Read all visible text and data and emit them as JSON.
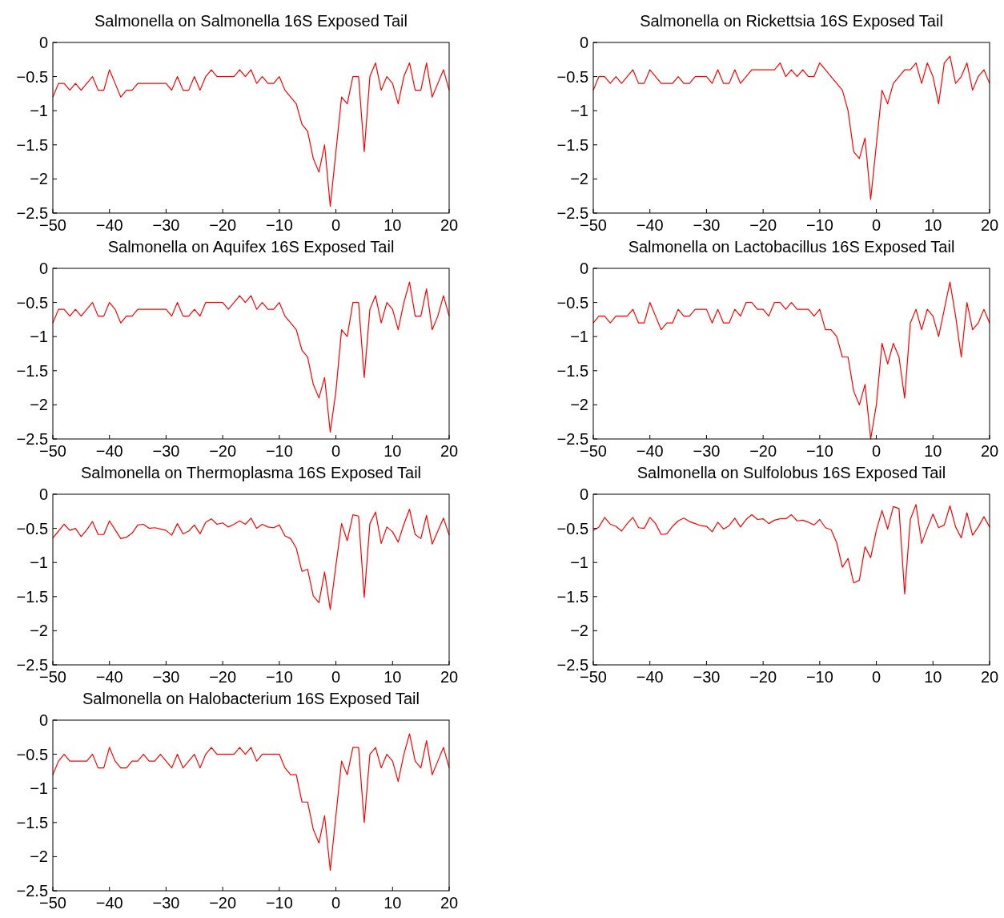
{
  "chart_data": [
    {
      "type": "line",
      "title": "Salmonella on Salmonella 16S Exposed Tail",
      "xlim": [
        -50,
        20
      ],
      "ylim": [
        -2.5,
        0
      ],
      "xticks": [
        -50,
        -40,
        -30,
        -20,
        -10,
        0,
        10,
        20
      ],
      "yticks": [
        -2.5,
        -2,
        -1.5,
        -1,
        -0.5,
        0
      ],
      "x": [
        -50,
        -49,
        -48,
        -47,
        -46,
        -45,
        -44,
        -43,
        -42,
        -41,
        -40,
        -39,
        -38,
        -37,
        -36,
        -35,
        -34,
        -33,
        -32,
        -31,
        -30,
        -29,
        -28,
        -27,
        -26,
        -25,
        -24,
        -23,
        -22,
        -21,
        -20,
        -19,
        -18,
        -17,
        -16,
        -15,
        -14,
        -13,
        -12,
        -11,
        -10,
        -9,
        -8,
        -7,
        -6,
        -5,
        -4,
        -3,
        -2,
        -1,
        0,
        1,
        2,
        3,
        4,
        5,
        6,
        7,
        8,
        9,
        10,
        11,
        12,
        13,
        14,
        15,
        16,
        17,
        18,
        19,
        20
      ],
      "series": [
        {
          "color": "#ff0000",
          "values": [
            -0.8,
            -0.6,
            -0.6,
            -0.7,
            -0.6,
            -0.7,
            -0.6,
            -0.5,
            -0.7,
            -0.7,
            -0.4,
            -0.6,
            -0.8,
            -0.7,
            -0.7,
            -0.6,
            -0.6,
            -0.6,
            -0.6,
            -0.6,
            -0.6,
            -0.7,
            -0.5,
            -0.7,
            -0.7,
            -0.5,
            -0.7,
            -0.5,
            -0.4,
            -0.5,
            -0.5,
            -0.5,
            -0.5,
            -0.4,
            -0.5,
            -0.4,
            -0.6,
            -0.5,
            -0.6,
            -0.6,
            -0.5,
            -0.7,
            -0.8,
            -0.9,
            -1.2,
            -1.3,
            -1.7,
            -1.9,
            -1.5,
            -2.4,
            -1.6,
            -0.8,
            -0.9,
            -0.5,
            -0.5,
            -1.6,
            -0.5,
            -0.3,
            -0.7,
            -0.5,
            -0.6,
            -0.9,
            -0.5,
            -0.3,
            -0.7,
            -0.7,
            -0.3,
            -0.8,
            -0.6,
            -0.4,
            -0.7
          ]
        }
      ]
    },
    {
      "type": "line",
      "title": "Salmonella on Rickettsia 16S Exposed Tail",
      "xlim": [
        -50,
        20
      ],
      "ylim": [
        -2.5,
        0
      ],
      "xticks": [
        -50,
        -40,
        -30,
        -20,
        -10,
        0,
        10,
        20
      ],
      "yticks": [
        -2.5,
        -2,
        -1.5,
        -1,
        -0.5,
        0
      ],
      "x": [
        -50,
        -49,
        -48,
        -47,
        -46,
        -45,
        -44,
        -43,
        -42,
        -41,
        -40,
        -39,
        -38,
        -37,
        -36,
        -35,
        -34,
        -33,
        -32,
        -31,
        -30,
        -29,
        -28,
        -27,
        -26,
        -25,
        -24,
        -23,
        -22,
        -21,
        -20,
        -19,
        -18,
        -17,
        -16,
        -15,
        -14,
        -13,
        -12,
        -11,
        -10,
        -9,
        -8,
        -7,
        -6,
        -5,
        -4,
        -3,
        -2,
        -1,
        0,
        1,
        2,
        3,
        4,
        5,
        6,
        7,
        8,
        9,
        10,
        11,
        12,
        13,
        14,
        15,
        16,
        17,
        18,
        19,
        20
      ],
      "series": [
        {
          "color": "#ff0000",
          "values": [
            -0.7,
            -0.5,
            -0.5,
            -0.6,
            -0.5,
            -0.6,
            -0.5,
            -0.4,
            -0.6,
            -0.6,
            -0.4,
            -0.5,
            -0.6,
            -0.6,
            -0.6,
            -0.5,
            -0.6,
            -0.6,
            -0.5,
            -0.5,
            -0.5,
            -0.6,
            -0.4,
            -0.6,
            -0.6,
            -0.4,
            -0.6,
            -0.5,
            -0.4,
            -0.4,
            -0.4,
            -0.4,
            -0.4,
            -0.3,
            -0.5,
            -0.4,
            -0.5,
            -0.4,
            -0.5,
            -0.5,
            -0.3,
            -0.4,
            -0.5,
            -0.6,
            -0.7,
            -1.0,
            -1.6,
            -1.7,
            -1.4,
            -2.3,
            -1.5,
            -0.7,
            -0.9,
            -0.6,
            -0.5,
            -0.4,
            -0.4,
            -0.3,
            -0.6,
            -0.3,
            -0.5,
            -0.9,
            -0.3,
            -0.2,
            -0.6,
            -0.5,
            -0.3,
            -0.7,
            -0.5,
            -0.4,
            -0.6
          ]
        }
      ]
    },
    {
      "type": "line",
      "title": "Salmonella on Aquifex 16S Exposed Tail",
      "xlim": [
        -50,
        20
      ],
      "ylim": [
        -2.5,
        0
      ],
      "xticks": [
        -50,
        -40,
        -30,
        -20,
        -10,
        0,
        10,
        20
      ],
      "yticks": [
        -2.5,
        -2,
        -1.5,
        -1,
        -0.5,
        0
      ],
      "x": [
        -50,
        -49,
        -48,
        -47,
        -46,
        -45,
        -44,
        -43,
        -42,
        -41,
        -40,
        -39,
        -38,
        -37,
        -36,
        -35,
        -34,
        -33,
        -32,
        -31,
        -30,
        -29,
        -28,
        -27,
        -26,
        -25,
        -24,
        -23,
        -22,
        -21,
        -20,
        -19,
        -18,
        -17,
        -16,
        -15,
        -14,
        -13,
        -12,
        -11,
        -10,
        -9,
        -8,
        -7,
        -6,
        -5,
        -4,
        -3,
        -2,
        -1,
        0,
        1,
        2,
        3,
        4,
        5,
        6,
        7,
        8,
        9,
        10,
        11,
        12,
        13,
        14,
        15,
        16,
        17,
        18,
        19,
        20
      ],
      "series": [
        {
          "color": "#ff0000",
          "values": [
            -0.8,
            -0.6,
            -0.6,
            -0.7,
            -0.6,
            -0.7,
            -0.6,
            -0.5,
            -0.7,
            -0.7,
            -0.5,
            -0.6,
            -0.8,
            -0.7,
            -0.7,
            -0.6,
            -0.6,
            -0.6,
            -0.6,
            -0.6,
            -0.6,
            -0.7,
            -0.5,
            -0.7,
            -0.7,
            -0.6,
            -0.7,
            -0.5,
            -0.5,
            -0.5,
            -0.5,
            -0.6,
            -0.5,
            -0.4,
            -0.5,
            -0.4,
            -0.6,
            -0.5,
            -0.6,
            -0.6,
            -0.5,
            -0.7,
            -0.8,
            -0.9,
            -1.2,
            -1.3,
            -1.7,
            -1.9,
            -1.6,
            -2.4,
            -1.8,
            -0.9,
            -1.0,
            -0.5,
            -0.5,
            -1.6,
            -0.6,
            -0.4,
            -0.8,
            -0.5,
            -0.6,
            -0.9,
            -0.5,
            -0.2,
            -0.7,
            -0.7,
            -0.3,
            -0.9,
            -0.7,
            -0.4,
            -0.7
          ]
        }
      ]
    },
    {
      "type": "line",
      "title": "Salmonella on Lactobacillus 16S Exposed Tail",
      "xlim": [
        -50,
        20
      ],
      "ylim": [
        -2.5,
        0
      ],
      "xticks": [
        -50,
        -40,
        -30,
        -20,
        -10,
        0,
        10,
        20
      ],
      "yticks": [
        -2.5,
        -2,
        -1.5,
        -1,
        -0.5,
        0
      ],
      "x": [
        -50,
        -49,
        -48,
        -47,
        -46,
        -45,
        -44,
        -43,
        -42,
        -41,
        -40,
        -39,
        -38,
        -37,
        -36,
        -35,
        -34,
        -33,
        -32,
        -31,
        -30,
        -29,
        -28,
        -27,
        -26,
        -25,
        -24,
        -23,
        -22,
        -21,
        -20,
        -19,
        -18,
        -17,
        -16,
        -15,
        -14,
        -13,
        -12,
        -11,
        -10,
        -9,
        -8,
        -7,
        -6,
        -5,
        -4,
        -3,
        -2,
        -1,
        0,
        1,
        2,
        3,
        4,
        5,
        6,
        7,
        8,
        9,
        10,
        11,
        12,
        13,
        14,
        15,
        16,
        17,
        18,
        19,
        20
      ],
      "series": [
        {
          "color": "#ff0000",
          "values": [
            -0.8,
            -0.7,
            -0.7,
            -0.8,
            -0.7,
            -0.7,
            -0.7,
            -0.6,
            -0.8,
            -0.8,
            -0.5,
            -0.7,
            -0.9,
            -0.8,
            -0.8,
            -0.6,
            -0.7,
            -0.7,
            -0.6,
            -0.6,
            -0.6,
            -0.8,
            -0.6,
            -0.8,
            -0.8,
            -0.6,
            -0.7,
            -0.5,
            -0.5,
            -0.6,
            -0.6,
            -0.7,
            -0.5,
            -0.5,
            -0.6,
            -0.5,
            -0.6,
            -0.6,
            -0.6,
            -0.7,
            -0.6,
            -0.9,
            -0.9,
            -1.0,
            -1.3,
            -1.3,
            -1.8,
            -2.0,
            -1.7,
            -2.5,
            -2.0,
            -1.1,
            -1.4,
            -1.1,
            -1.3,
            -1.9,
            -0.8,
            -0.6,
            -0.9,
            -0.6,
            -0.7,
            -1.0,
            -0.6,
            -0.2,
            -0.7,
            -1.3,
            -0.5,
            -0.9,
            -0.8,
            -0.6,
            -0.8
          ]
        }
      ]
    },
    {
      "type": "line",
      "title": "Salmonella on Thermoplasma 16S Exposed Tail",
      "xlim": [
        -50,
        20
      ],
      "ylim": [
        -2.5,
        0
      ],
      "xticks": [
        -50,
        -40,
        -30,
        -20,
        -10,
        0,
        10,
        20
      ],
      "yticks": [
        -2.5,
        -2,
        -1.5,
        -1,
        -0.5,
        0
      ],
      "x": [
        -50,
        -49,
        -48,
        -47,
        -46,
        -45,
        -44,
        -43,
        -42,
        -41,
        -40,
        -39,
        -38,
        -37,
        -36,
        -35,
        -34,
        -33,
        -32,
        -31,
        -30,
        -29,
        -28,
        -27,
        -26,
        -25,
        -24,
        -23,
        -22,
        -21,
        -20,
        -19,
        -18,
        -17,
        -16,
        -15,
        -14,
        -13,
        -12,
        -11,
        -10,
        -9,
        -8,
        -7,
        -6,
        -5,
        -4,
        -3,
        -2,
        -1,
        0,
        1,
        2,
        3,
        4,
        5,
        6,
        7,
        8,
        9,
        10,
        11,
        12,
        13,
        14,
        15,
        16,
        17,
        18,
        19,
        20
      ],
      "series": [
        {
          "color": "#ff0000",
          "values": [
            -0.64,
            -0.54,
            -0.44,
            -0.53,
            -0.5,
            -0.62,
            -0.52,
            -0.4,
            -0.59,
            -0.59,
            -0.39,
            -0.52,
            -0.65,
            -0.63,
            -0.57,
            -0.45,
            -0.44,
            -0.5,
            -0.49,
            -0.51,
            -0.53,
            -0.6,
            -0.43,
            -0.58,
            -0.54,
            -0.45,
            -0.58,
            -0.41,
            -0.36,
            -0.44,
            -0.42,
            -0.48,
            -0.44,
            -0.39,
            -0.44,
            -0.35,
            -0.5,
            -0.44,
            -0.48,
            -0.49,
            -0.45,
            -0.61,
            -0.65,
            -0.79,
            -1.13,
            -1.1,
            -1.49,
            -1.59,
            -1.14,
            -1.69,
            -1.04,
            -0.43,
            -0.68,
            -0.3,
            -0.32,
            -1.51,
            -0.43,
            -0.26,
            -0.72,
            -0.48,
            -0.55,
            -0.7,
            -0.44,
            -0.22,
            -0.59,
            -0.65,
            -0.31,
            -0.73,
            -0.54,
            -0.35,
            -0.6
          ]
        }
      ]
    },
    {
      "type": "line",
      "title": "Salmonella on Sulfolobus 16S Exposed Tail",
      "xlim": [
        -50,
        20
      ],
      "ylim": [
        -2.5,
        0
      ],
      "xticks": [
        -50,
        -40,
        -30,
        -20,
        -10,
        0,
        10,
        20
      ],
      "yticks": [
        -2.5,
        -2,
        -1.5,
        -1,
        -0.5,
        0
      ],
      "x": [
        -50,
        -49,
        -48,
        -47,
        -46,
        -45,
        -44,
        -43,
        -42,
        -41,
        -40,
        -39,
        -38,
        -37,
        -36,
        -35,
        -34,
        -33,
        -32,
        -31,
        -30,
        -29,
        -28,
        -27,
        -26,
        -25,
        -24,
        -23,
        -22,
        -21,
        -20,
        -19,
        -18,
        -17,
        -16,
        -15,
        -14,
        -13,
        -12,
        -11,
        -10,
        -9,
        -8,
        -7,
        -6,
        -5,
        -4,
        -3,
        -2,
        -1,
        0,
        1,
        2,
        3,
        4,
        5,
        6,
        7,
        8,
        9,
        10,
        11,
        12,
        13,
        14,
        15,
        16,
        17,
        18,
        19,
        20
      ],
      "series": [
        {
          "color": "#ff0000",
          "values": [
            -0.53,
            -0.48,
            -0.34,
            -0.44,
            -0.47,
            -0.54,
            -0.43,
            -0.34,
            -0.49,
            -0.5,
            -0.34,
            -0.43,
            -0.59,
            -0.58,
            -0.47,
            -0.39,
            -0.35,
            -0.4,
            -0.43,
            -0.46,
            -0.47,
            -0.55,
            -0.41,
            -0.51,
            -0.46,
            -0.35,
            -0.48,
            -0.37,
            -0.3,
            -0.37,
            -0.36,
            -0.43,
            -0.38,
            -0.36,
            -0.36,
            -0.3,
            -0.39,
            -0.38,
            -0.41,
            -0.45,
            -0.37,
            -0.49,
            -0.52,
            -0.71,
            -1.07,
            -0.94,
            -1.3,
            -1.26,
            -0.77,
            -0.93,
            -0.53,
            -0.24,
            -0.51,
            -0.18,
            -0.21,
            -1.46,
            -0.37,
            -0.15,
            -0.72,
            -0.5,
            -0.29,
            -0.49,
            -0.45,
            -0.17,
            -0.48,
            -0.64,
            -0.27,
            -0.6,
            -0.48,
            -0.33,
            -0.48
          ]
        }
      ]
    },
    {
      "type": "line",
      "title": "Salmonella on Halobacterium 16S Exposed Tail",
      "xlim": [
        -50,
        20
      ],
      "ylim": [
        -2.5,
        0
      ],
      "xticks": [
        -50,
        -40,
        -30,
        -20,
        -10,
        0,
        10,
        20
      ],
      "yticks": [
        -2.5,
        -2,
        -1.5,
        -1,
        -0.5,
        0
      ],
      "x": [
        -50,
        -49,
        -48,
        -47,
        -46,
        -45,
        -44,
        -43,
        -42,
        -41,
        -40,
        -39,
        -38,
        -37,
        -36,
        -35,
        -34,
        -33,
        -32,
        -31,
        -30,
        -29,
        -28,
        -27,
        -26,
        -25,
        -24,
        -23,
        -22,
        -21,
        -20,
        -19,
        -18,
        -17,
        -16,
        -15,
        -14,
        -13,
        -12,
        -11,
        -10,
        -9,
        -8,
        -7,
        -6,
        -5,
        -4,
        -3,
        -2,
        -1,
        0,
        1,
        2,
        3,
        4,
        5,
        6,
        7,
        8,
        9,
        10,
        11,
        12,
        13,
        14,
        15,
        16,
        17,
        18,
        19,
        20
      ],
      "series": [
        {
          "color": "#ff0000",
          "values": [
            -0.8,
            -0.6,
            -0.5,
            -0.6,
            -0.6,
            -0.6,
            -0.6,
            -0.5,
            -0.7,
            -0.7,
            -0.4,
            -0.6,
            -0.7,
            -0.7,
            -0.6,
            -0.6,
            -0.5,
            -0.6,
            -0.6,
            -0.5,
            -0.6,
            -0.7,
            -0.5,
            -0.7,
            -0.6,
            -0.5,
            -0.7,
            -0.5,
            -0.4,
            -0.5,
            -0.5,
            -0.5,
            -0.5,
            -0.4,
            -0.5,
            -0.4,
            -0.6,
            -0.5,
            -0.5,
            -0.5,
            -0.5,
            -0.7,
            -0.8,
            -0.8,
            -1.2,
            -1.2,
            -1.6,
            -1.8,
            -1.4,
            -2.2,
            -1.4,
            -0.6,
            -0.8,
            -0.4,
            -0.4,
            -1.5,
            -0.5,
            -0.4,
            -0.7,
            -0.5,
            -0.6,
            -0.9,
            -0.5,
            -0.2,
            -0.6,
            -0.7,
            -0.3,
            -0.8,
            -0.6,
            -0.4,
            -0.7
          ]
        }
      ]
    }
  ]
}
